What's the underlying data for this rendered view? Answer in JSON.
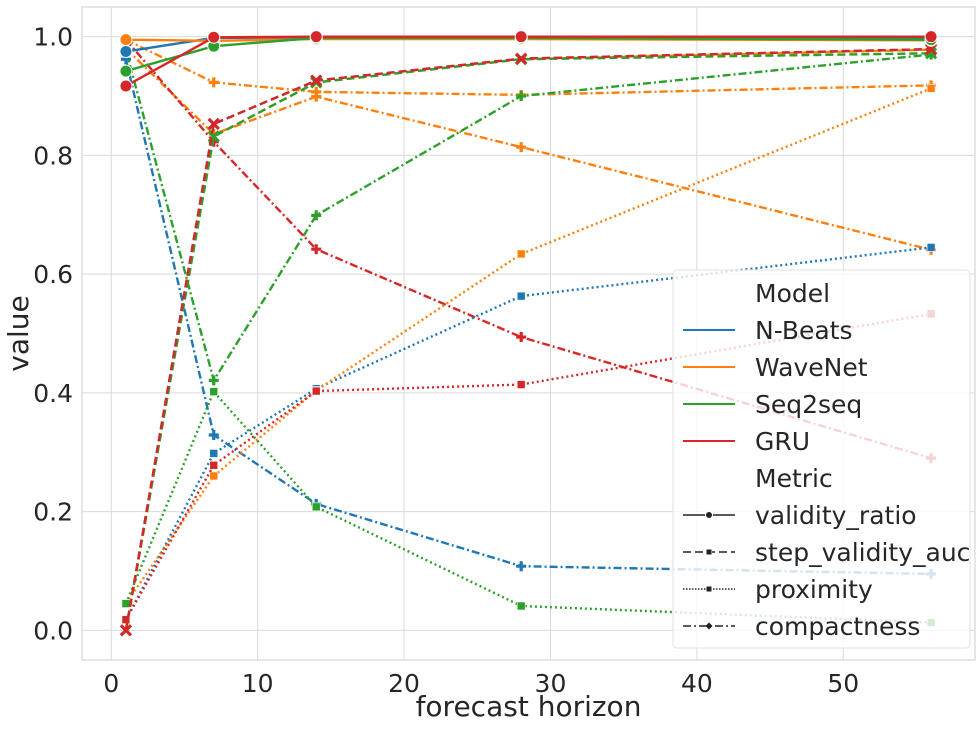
{
  "chart_data": {
    "type": "line",
    "title": "",
    "xlabel": "forecast horizon",
    "ylabel": "value",
    "xlim": [
      -2,
      59
    ],
    "ylim": [
      -0.05,
      1.05
    ],
    "x_ticks": [
      0,
      10,
      20,
      30,
      40,
      50
    ],
    "y_ticks": [
      0.0,
      0.2,
      0.4,
      0.6,
      0.8,
      1.0
    ],
    "x_tick_labels": [
      "0",
      "10",
      "20",
      "30",
      "40",
      "50"
    ],
    "y_tick_labels": [
      "0.0",
      "0.2",
      "0.4",
      "0.6",
      "0.8",
      "1.0"
    ],
    "grid": true,
    "x": [
      1,
      7,
      14,
      28,
      56
    ],
    "legend": {
      "placement": "lower-right",
      "model_title": "Model",
      "metric_title": "Metric",
      "models": [
        {
          "name": "N-Beats",
          "color": "#1f77b4"
        },
        {
          "name": "WaveNet",
          "color": "#ff7f0e"
        },
        {
          "name": "Seq2seq",
          "color": "#2ca02c"
        },
        {
          "name": "GRU",
          "color": "#d62728"
        }
      ],
      "metrics": [
        {
          "name": "validity_ratio",
          "dash": "solid",
          "marker": "circle"
        },
        {
          "name": "step_validity_auc",
          "dash": "dashed",
          "marker": "x"
        },
        {
          "name": "proximity",
          "dash": "dotted",
          "marker": "square"
        },
        {
          "name": "compactness",
          "dash": "dashdot",
          "marker": "plus"
        }
      ]
    },
    "series": [
      {
        "model": "N-Beats",
        "metric": "validity_ratio",
        "values": [
          0.975,
          0.998,
          0.999,
          0.999,
          0.998
        ]
      },
      {
        "model": "WaveNet",
        "metric": "validity_ratio",
        "values": [
          0.995,
          0.993,
          0.996,
          0.996,
          0.994
        ]
      },
      {
        "model": "Seq2seq",
        "metric": "validity_ratio",
        "values": [
          0.942,
          0.984,
          0.998,
          0.998,
          0.995
        ]
      },
      {
        "model": "GRU",
        "metric": "validity_ratio",
        "values": [
          0.917,
          0.999,
          1.0,
          1.0,
          1.0
        ]
      },
      {
        "model": "N-Beats",
        "metric": "step_validity_auc",
        "values": [
          0.0,
          0.853,
          0.926,
          0.963,
          0.979
        ]
      },
      {
        "model": "WaveNet",
        "metric": "step_validity_auc",
        "values": [
          0.0,
          0.832,
          0.923,
          0.962,
          0.978
        ]
      },
      {
        "model": "Seq2seq",
        "metric": "step_validity_auc",
        "values": [
          0.0,
          0.832,
          0.923,
          0.962,
          0.972
        ]
      },
      {
        "model": "GRU",
        "metric": "step_validity_auc",
        "values": [
          0.0,
          0.853,
          0.926,
          0.963,
          0.979
        ]
      },
      {
        "model": "N-Beats",
        "metric": "proximity",
        "values": [
          0.018,
          0.298,
          0.407,
          0.563,
          0.645
        ]
      },
      {
        "model": "WaveNet",
        "metric": "proximity",
        "values": [
          0.045,
          0.26,
          0.404,
          0.634,
          0.913
        ]
      },
      {
        "model": "Seq2seq",
        "metric": "proximity",
        "values": [
          0.045,
          0.402,
          0.208,
          0.041,
          0.013
        ]
      },
      {
        "model": "GRU",
        "metric": "proximity",
        "values": [
          0.018,
          0.278,
          0.403,
          0.414,
          0.533
        ]
      },
      {
        "model": "N-Beats",
        "metric": "compactness",
        "values": [
          0.962,
          0.329,
          0.213,
          0.108,
          0.095
        ]
      },
      {
        "model": "WaveNet",
        "metric": "compactness",
        "values": [
          0.995,
          0.923,
          0.907,
          0.902,
          0.918
        ]
      },
      {
        "model": "WaveNet",
        "metric": "compactness",
        "values": [
          0.98,
          0.836,
          0.899,
          0.814,
          0.641
        ]
      },
      {
        "model": "Seq2seq",
        "metric": "compactness",
        "values": [
          0.978,
          0.421,
          0.699,
          0.9,
          0.97
        ]
      },
      {
        "model": "GRU",
        "metric": "compactness",
        "values": [
          0.995,
          0.823,
          0.642,
          0.494,
          0.29
        ]
      }
    ]
  }
}
